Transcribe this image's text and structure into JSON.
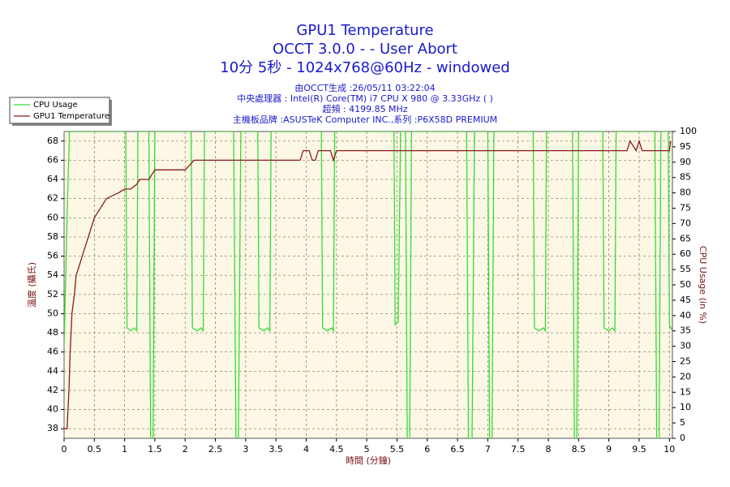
{
  "chart_data": {
    "type": "line",
    "title": "GPU1 Temperature",
    "subtitle": [
      "OCCT 3.0.0 -  - User Abort",
      "10分 5秒 - 1024x768@60Hz - windowed"
    ],
    "info": [
      "由OCCT生成 :26/05/11 03:22:04",
      "中央處理器 : Intel(R) Core(TM) i7 CPU X 980 @ 3.33GHz (  )",
      "超頻 : 4199.85 MHz",
      "主機板品牌 :ASUSTeK Computer INC.,系列 :P6X58D PREMIUM"
    ],
    "xlabel": "時間 (分鐘)",
    "ylabel": "溫度 (攝氏)",
    "y2label": "CPU Usage (in %)",
    "xlim": [
      0,
      10.05
    ],
    "xticks": [
      0,
      0.5,
      1,
      1.5,
      2,
      2.5,
      3,
      3.5,
      4,
      4.5,
      5,
      5.5,
      6,
      6.5,
      7,
      7.5,
      8,
      8.5,
      9,
      9.5,
      10
    ],
    "ylim": [
      37,
      69
    ],
    "yticks": [
      38,
      40,
      42,
      44,
      46,
      48,
      50,
      52,
      54,
      56,
      58,
      60,
      62,
      64,
      66,
      68
    ],
    "y2lim": [
      0,
      100
    ],
    "y2ticks": [
      0,
      5,
      10,
      15,
      20,
      25,
      30,
      35,
      40,
      45,
      50,
      55,
      60,
      65,
      70,
      75,
      80,
      85,
      90,
      95,
      100
    ],
    "grid": true,
    "legend": "upper left",
    "series": [
      {
        "name": "CPU Usage",
        "color": "#33dd33",
        "axis": "y2",
        "x": [
          0,
          0.03,
          0.06,
          0.09,
          1.02,
          1.04,
          1.1,
          1.16,
          1.2,
          1.22,
          1.4,
          1.43,
          1.47,
          1.5,
          2.1,
          2.12,
          2.2,
          2.26,
          2.3,
          2.32,
          2.8,
          2.84,
          2.88,
          2.92,
          3.2,
          3.22,
          3.3,
          3.36,
          3.4,
          3.42,
          4.25,
          4.27,
          4.35,
          4.42,
          4.45,
          4.47,
          5.45,
          5.47,
          5.52,
          5.56,
          5.64,
          5.67,
          5.71,
          5.74,
          6.65,
          6.68,
          6.74,
          6.78,
          7.0,
          7.03,
          7.07,
          7.1,
          7.75,
          7.77,
          7.85,
          7.92,
          7.95,
          7.97,
          8.4,
          8.43,
          8.47,
          8.5,
          8.9,
          8.92,
          9.0,
          9.06,
          9.1,
          9.12,
          9.76,
          9.79,
          9.83,
          9.86,
          9.98,
          10.0,
          10.05
        ],
        "values": [
          30,
          55,
          80,
          100,
          100,
          36,
          35,
          36,
          35,
          100,
          100,
          0,
          0,
          100,
          100,
          36,
          35,
          36,
          35,
          100,
          100,
          0,
          0,
          100,
          100,
          36,
          35,
          36,
          35,
          100,
          100,
          36,
          35,
          36,
          35,
          100,
          100,
          37,
          38,
          100,
          100,
          0,
          0,
          100,
          100,
          0,
          0,
          100,
          100,
          0,
          0,
          100,
          100,
          36,
          35,
          36,
          35,
          100,
          100,
          0,
          0,
          100,
          100,
          36,
          35,
          36,
          35,
          100,
          100,
          0,
          0,
          100,
          100,
          37,
          35
        ]
      },
      {
        "name": "GPU1 Temperature",
        "color": "#8b1a1a",
        "x": [
          0,
          0.05,
          0.08,
          0.1,
          0.13,
          0.17,
          0.2,
          0.25,
          0.3,
          0.35,
          0.4,
          0.45,
          0.5,
          0.6,
          0.7,
          0.8,
          0.9,
          1.0,
          1.1,
          1.2,
          1.25,
          1.4,
          1.5,
          2.0,
          2.15,
          3.9,
          3.95,
          4.05,
          4.1,
          4.15,
          4.2,
          4.4,
          4.45,
          4.5,
          9.3,
          9.35,
          9.45,
          9.5,
          9.55,
          10.0,
          10.02
        ],
        "values": [
          38,
          38,
          42,
          46,
          50,
          52,
          54,
          55,
          56,
          57,
          58,
          59,
          60,
          61,
          62,
          62.3,
          62.6,
          63,
          63,
          63.5,
          64,
          64,
          65,
          65,
          66,
          66,
          67,
          67,
          66,
          66,
          67,
          67,
          66,
          67,
          67,
          68,
          67,
          68,
          67,
          67,
          68
        ]
      }
    ]
  }
}
